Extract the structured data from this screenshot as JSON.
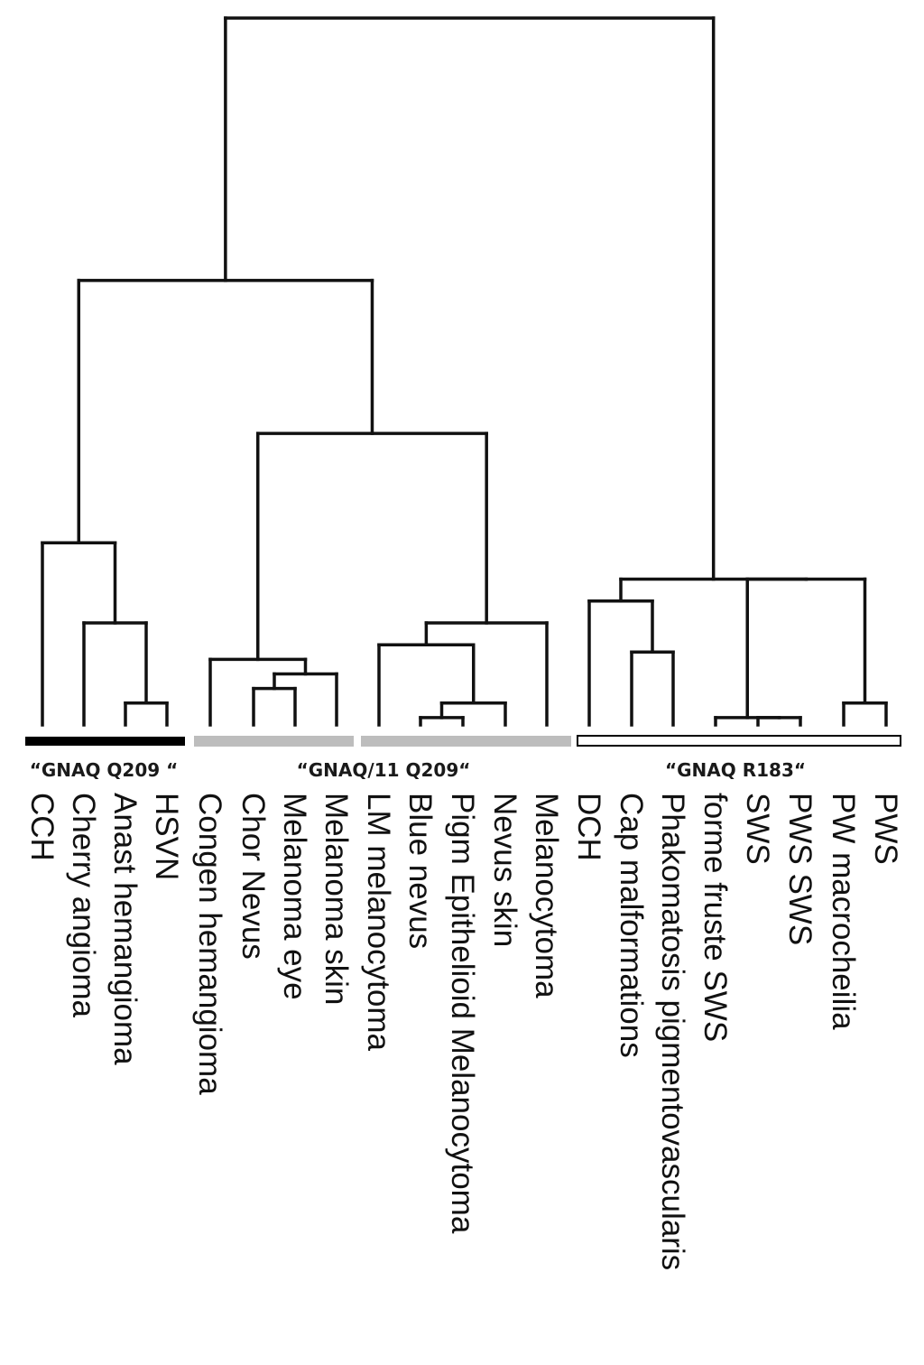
{
  "figure": {
    "type": "dendrogram",
    "orientation": "top-down"
  },
  "groups": [
    {
      "id": "g1",
      "label": "“GNAQ Q209 “",
      "bar_style": "solid-black",
      "bar_color": "#000000",
      "leaf_span": [
        0,
        3
      ]
    },
    {
      "id": "g2",
      "label": "“GNAQ/11 Q209“",
      "bar_style": "solid-gray",
      "bar_color": "#bdbdbd",
      "leaf_span": [
        4,
        12
      ]
    },
    {
      "id": "g3",
      "label": "“GNAQ R183“",
      "bar_style": "outlined",
      "bar_color": "#ffffff",
      "leaf_span": [
        13,
        20
      ]
    }
  ],
  "leaves": [
    "CCH",
    "Cherry angioma",
    "Anast hemangioma",
    "HSVN",
    "Congen hemangioma",
    "Chor Nevus",
    "Melanoma eye",
    "Melanoma skin",
    "LM melanocytoma",
    "Blue nevus",
    "Pigm Epithelioid Melanocytoma",
    "Nevus skin",
    "Melanocytoma",
    "DCH",
    "Cap malformations",
    "Phakomatosis pigmentovascularis",
    "forme fruste SWS",
    "SWS",
    "PWS SWS",
    "PW macrocheilia",
    "PWS"
  ],
  "tree": {
    "h": 0.97,
    "children": [
      {
        "h": 0.61,
        "children": [
          {
            "h": 0.25,
            "children": [
              {
                "leaf": 0
              },
              {
                "h": 0.14,
                "children": [
                  {
                    "leaf": 1
                  },
                  {
                    "h": 0.03,
                    "children": [
                      {
                        "leaf": 2
                      },
                      {
                        "leaf": 3
                      }
                    ]
                  }
                ]
              }
            ]
          },
          {
            "h": 0.4,
            "children": [
              {
                "h": 0.09,
                "children": [
                  {
                    "leaf": 4
                  },
                  {
                    "h": 0.07,
                    "children": [
                      {
                        "h": 0.05,
                        "children": [
                          {
                            "leaf": 5
                          },
                          {
                            "leaf": 6
                          }
                        ]
                      },
                      {
                        "leaf": 7
                      }
                    ]
                  }
                ]
              },
              {
                "h": 0.14,
                "children": [
                  {
                    "h": 0.11,
                    "children": [
                      {
                        "leaf": 8
                      },
                      {
                        "h": 0.03,
                        "children": [
                          {
                            "h": 0.01,
                            "children": [
                              {
                                "leaf": 9
                              },
                              {
                                "leaf": 10
                              }
                            ]
                          },
                          {
                            "leaf": 11
                          }
                        ]
                      }
                    ]
                  },
                  {
                    "leaf": 12
                  }
                ]
              }
            ]
          }
        ]
      },
      {
        "h": 0.2,
        "children": [
          {
            "h": 0.17,
            "children": [
              {
                "leaf": 13
              },
              {
                "h": 0.1,
                "children": [
                  {
                    "leaf": 14
                  },
                  {
                    "leaf": 15
                  }
                ]
              }
            ]
          },
          {
            "h": 0.2,
            "children": [
              {
                "h": 0.01,
                "children": [
                  {
                    "leaf": 16
                  },
                  {
                    "h": 0.01,
                    "children": [
                      {
                        "leaf": 17
                      },
                      {
                        "leaf": 18
                      }
                    ]
                  }
                ]
              },
              {
                "h": 0.03,
                "children": [
                  {
                    "leaf": 19
                  },
                  {
                    "leaf": 20
                  }
                ]
              }
            ]
          }
        ]
      }
    ]
  }
}
